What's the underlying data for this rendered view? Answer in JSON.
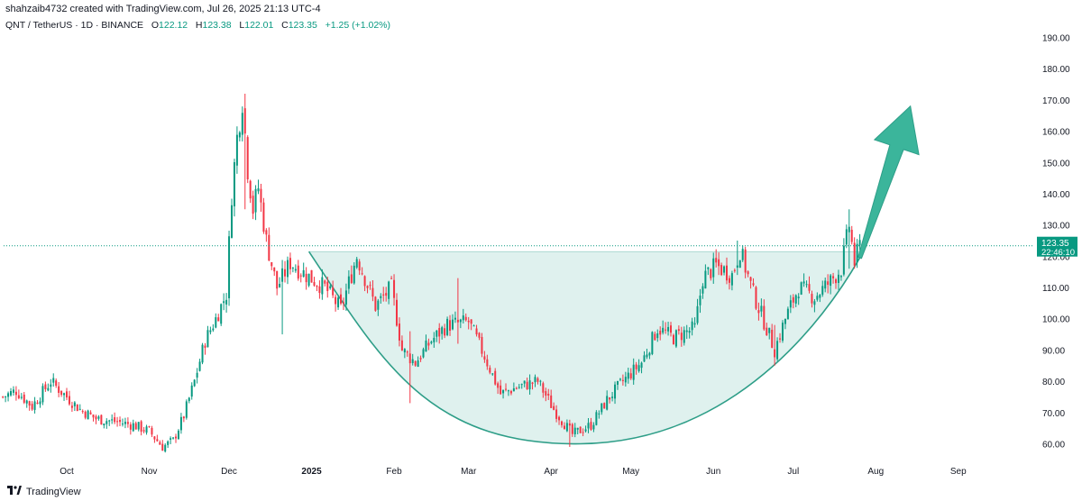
{
  "header": {
    "credit": "shahzaib4732 created with TradingView.com, Jul 26, 2025 21:13 UTC-4",
    "symbol": "QNT / TetherUS · 1D · BINANCE",
    "open_label": "O",
    "open": "122.12",
    "high_label": "H",
    "high": "123.38",
    "low_label": "L",
    "low": "122.01",
    "close_label": "C",
    "close": "123.35",
    "change": "+1.25 (+1.02%)"
  },
  "footer": {
    "brand": "TradingView"
  },
  "colors": {
    "up": "#089981",
    "down": "#f23645",
    "pattern_fill": "#dff1ee",
    "pattern_line": "#2e9e88",
    "arrow": "#3bb59b",
    "price_line": "#089981"
  },
  "chart_data": {
    "type": "candlestick",
    "price_axis": {
      "ylim": [
        53,
        195
      ],
      "ticks": [
        "60.00",
        "70.00",
        "80.00",
        "90.00",
        "100.00",
        "110.00",
        "120.00",
        "130.00",
        "140.00",
        "150.00",
        "160.00",
        "170.00",
        "180.00",
        "190.00"
      ]
    },
    "time_axis": {
      "labels": [
        {
          "text": "Oct",
          "date": "2024-10-01"
        },
        {
          "text": "Nov",
          "date": "2024-11-01"
        },
        {
          "text": "Dec",
          "date": "2024-12-01"
        },
        {
          "text": "2025",
          "date": "2025-01-01",
          "bold": true
        },
        {
          "text": "Feb",
          "date": "2025-02-01"
        },
        {
          "text": "Mar",
          "date": "2025-03-01"
        },
        {
          "text": "Apr",
          "date": "2025-04-01"
        },
        {
          "text": "May",
          "date": "2025-05-01"
        },
        {
          "text": "Jun",
          "date": "2025-06-01"
        },
        {
          "text": "Jul",
          "date": "2025-07-01"
        },
        {
          "text": "Aug",
          "date": "2025-08-01"
        },
        {
          "text": "Sep",
          "date": "2025-09-01"
        }
      ]
    },
    "last_price": {
      "value": 123.35,
      "label": "123.35",
      "countdown": "22:46:10"
    },
    "close_path": [
      {
        "date": "2024-09-07",
        "close": 75
      },
      {
        "date": "2024-09-12",
        "close": 77
      },
      {
        "date": "2024-09-18",
        "close": 72
      },
      {
        "date": "2024-09-25",
        "close": 80
      },
      {
        "date": "2024-10-01",
        "close": 75
      },
      {
        "date": "2024-10-06",
        "close": 71
      },
      {
        "date": "2024-10-12",
        "close": 68
      },
      {
        "date": "2024-10-20",
        "close": 67
      },
      {
        "date": "2024-10-26",
        "close": 66
      },
      {
        "date": "2024-11-01",
        "close": 64
      },
      {
        "date": "2024-11-06",
        "close": 59
      },
      {
        "date": "2024-11-10",
        "close": 61
      },
      {
        "date": "2024-11-14",
        "close": 69
      },
      {
        "date": "2024-11-18",
        "close": 80
      },
      {
        "date": "2024-11-22",
        "close": 93
      },
      {
        "date": "2024-11-26",
        "close": 100
      },
      {
        "date": "2024-11-30",
        "close": 108
      },
      {
        "date": "2024-12-02",
        "close": 140
      },
      {
        "date": "2024-12-04",
        "close": 158
      },
      {
        "date": "2024-12-06",
        "close": 170
      },
      {
        "date": "2024-12-08",
        "close": 148
      },
      {
        "date": "2024-12-10",
        "close": 135
      },
      {
        "date": "2024-12-12",
        "close": 142
      },
      {
        "date": "2024-12-15",
        "close": 125
      },
      {
        "date": "2024-12-19",
        "close": 110
      },
      {
        "date": "2024-12-24",
        "close": 118
      },
      {
        "date": "2024-12-30",
        "close": 114
      },
      {
        "date": "2025-01-06",
        "close": 110
      },
      {
        "date": "2025-01-12",
        "close": 103
      },
      {
        "date": "2025-01-18",
        "close": 120
      },
      {
        "date": "2025-01-25",
        "close": 104
      },
      {
        "date": "2025-01-31",
        "close": 110
      },
      {
        "date": "2025-02-04",
        "close": 90
      },
      {
        "date": "2025-02-09",
        "close": 86
      },
      {
        "date": "2025-02-15",
        "close": 93
      },
      {
        "date": "2025-02-21",
        "close": 98
      },
      {
        "date": "2025-03-01",
        "close": 99
      },
      {
        "date": "2025-03-07",
        "close": 88
      },
      {
        "date": "2025-03-13",
        "close": 76
      },
      {
        "date": "2025-03-19",
        "close": 78
      },
      {
        "date": "2025-03-27",
        "close": 80
      },
      {
        "date": "2025-04-02",
        "close": 71
      },
      {
        "date": "2025-04-09",
        "close": 63
      },
      {
        "date": "2025-04-16",
        "close": 66
      },
      {
        "date": "2025-04-22",
        "close": 74
      },
      {
        "date": "2025-04-28",
        "close": 80
      },
      {
        "date": "2025-05-05",
        "close": 86
      },
      {
        "date": "2025-05-11",
        "close": 97
      },
      {
        "date": "2025-05-17",
        "close": 94
      },
      {
        "date": "2025-05-25",
        "close": 97
      },
      {
        "date": "2025-05-28",
        "close": 113
      },
      {
        "date": "2025-06-02",
        "close": 117
      },
      {
        "date": "2025-06-08",
        "close": 114
      },
      {
        "date": "2025-06-11",
        "close": 122
      },
      {
        "date": "2025-06-16",
        "close": 108
      },
      {
        "date": "2025-06-21",
        "close": 97
      },
      {
        "date": "2025-06-24",
        "close": 90
      },
      {
        "date": "2025-06-28",
        "close": 100
      },
      {
        "date": "2025-07-03",
        "close": 110
      },
      {
        "date": "2025-07-09",
        "close": 107
      },
      {
        "date": "2025-07-15",
        "close": 112
      },
      {
        "date": "2025-07-19",
        "close": 116
      },
      {
        "date": "2025-07-22",
        "close": 130
      },
      {
        "date": "2025-07-24",
        "close": 118
      },
      {
        "date": "2025-07-26",
        "close": 123.35
      }
    ],
    "spikes": [
      {
        "date": "2024-12-07",
        "high": 172,
        "low": 135
      },
      {
        "date": "2024-12-21",
        "high": 112,
        "low": 95
      },
      {
        "date": "2025-02-07",
        "high": 96,
        "low": 73
      },
      {
        "date": "2025-02-25",
        "high": 113,
        "low": 92
      },
      {
        "date": "2025-04-08",
        "high": 66,
        "low": 59
      },
      {
        "date": "2025-06-10",
        "high": 125,
        "low": 114
      },
      {
        "date": "2025-06-24",
        "high": 98,
        "low": 85
      },
      {
        "date": "2025-07-22",
        "high": 135,
        "low": 116
      }
    ],
    "resistance": 121.5,
    "cup": {
      "start_date": "2024-12-31",
      "bottom_date": "2025-04-12",
      "bottom_price": 60,
      "end_date": "2025-07-26",
      "end_price": 119.5
    },
    "arrow": {
      "from_date": "2025-07-26",
      "from_price": 119.5,
      "to_date": "2025-08-14",
      "to_price": 168
    }
  }
}
